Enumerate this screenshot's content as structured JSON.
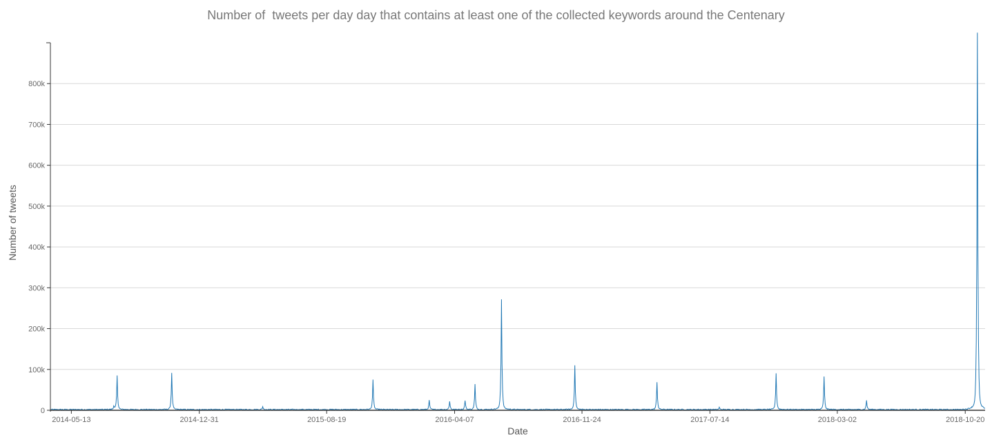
{
  "chart_data": {
    "type": "line",
    "title": "Number of  tweets per day day that contains at least one of the collected keywords around the Centenary",
    "xlabel": "Date",
    "ylabel": "Number of tweets",
    "x_ticks": [
      "2014-05-13",
      "2014-12-31",
      "2015-08-19",
      "2016-04-07",
      "2016-11-24",
      "2017-07-14",
      "2018-03-02",
      "2018-10-20"
    ],
    "y_ticks": [
      "0",
      "100k",
      "200k",
      "300k",
      "400k",
      "500k",
      "600k",
      "700k",
      "800k"
    ],
    "xlim": [
      "2014-04-05",
      "2018-11-25"
    ],
    "ylim": [
      0,
      900000
    ],
    "grid": true,
    "series_color": "#1f77b4",
    "baseline": 1500,
    "peaks": [
      {
        "date": "2014-07-29",
        "value": 8000
      },
      {
        "date": "2014-08-04",
        "value": 80000
      },
      {
        "date": "2014-11-11",
        "value": 88000
      },
      {
        "date": "2015-04-25",
        "value": 7000
      },
      {
        "date": "2015-11-11",
        "value": 70000
      },
      {
        "date": "2016-02-21",
        "value": 22000
      },
      {
        "date": "2016-03-29",
        "value": 20000
      },
      {
        "date": "2016-04-26",
        "value": 22000
      },
      {
        "date": "2016-05-14",
        "value": 60000
      },
      {
        "date": "2016-07-01",
        "value": 262000
      },
      {
        "date": "2016-11-11",
        "value": 104000
      },
      {
        "date": "2017-04-09",
        "value": 65000
      },
      {
        "date": "2017-07-31",
        "value": 5000
      },
      {
        "date": "2017-11-11",
        "value": 87000
      },
      {
        "date": "2018-02-06",
        "value": 78000
      },
      {
        "date": "2018-04-24",
        "value": 22000
      },
      {
        "date": "2018-11-11",
        "value": 895000
      }
    ]
  }
}
